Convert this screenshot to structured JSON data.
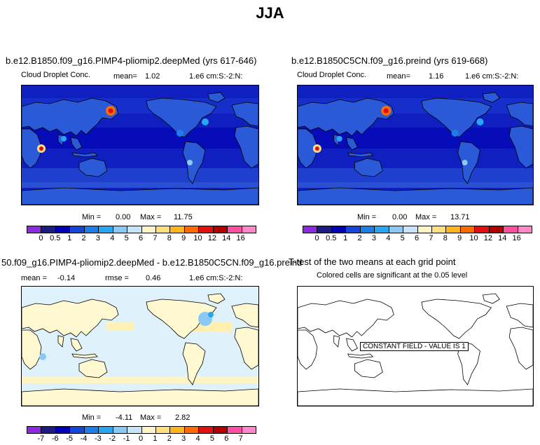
{
  "page_title": "JJA",
  "panels": {
    "p1": {
      "title": "b.e12.B1850.f09_g16.PIMP4-pliomip2.deepMed (yrs 617-646)",
      "var": "Cloud Droplet Conc.",
      "mean_label": "mean=",
      "mean_value": "1.02",
      "units": "1.e6 cm:S:-2:N:",
      "min_label": "Min =",
      "min_value": "0.00",
      "max_label": "Max =",
      "max_value": "11.75"
    },
    "p2": {
      "title": "b.e12.B1850C5CN.f09_g16.preind (yrs 619-668)",
      "var": "Cloud Droplet Conc.",
      "mean_label": "mean=",
      "mean_value": "1.16",
      "units": "1.e6 cm:S:-2:N:",
      "min_label": "Min =",
      "min_value": "0.00",
      "max_label": "Max =",
      "max_value": "13.71"
    },
    "p3": {
      "title": "50.f09_g16.PIMP4-pliomip2.deepMed - b.e12.B1850C5CN.f09_g16.preind",
      "mean_label": "mean =",
      "mean_value": "-0.14",
      "rmse_label": "rmse =",
      "rmse_value": "0.46",
      "units": "1.e6 cm:S:-2:N:",
      "min_label": "Min =",
      "min_value": "-4.11",
      "max_label": "Max =",
      "max_value": "2.82"
    },
    "p4": {
      "title": "T-test of the two means at each grid point",
      "subtitle": "Colored cells are significant at the 0.05 level",
      "constant_label": "CONSTANT FIELD - VALUE IS 1"
    }
  },
  "colorbar_abs": {
    "ticks": [
      "0",
      "0.5",
      "1",
      "2",
      "3",
      "4",
      "5",
      "6",
      "7",
      "8",
      "9",
      "10",
      "12",
      "14",
      "16"
    ],
    "colors": [
      "#8a2be2",
      "#1c1c80",
      "#0000b4",
      "#1646d8",
      "#1e7ee8",
      "#28a6f2",
      "#8cc8f4",
      "#c8e4f8",
      "#fff4c8",
      "#ffe080",
      "#ffb420",
      "#ff6a00",
      "#e01010",
      "#b00000",
      "#ff50a0",
      "#ff88c8"
    ]
  },
  "colorbar_diff": {
    "ticks": [
      "-7",
      "-6",
      "-5",
      "-4",
      "-3",
      "-2",
      "-1",
      "0",
      "1",
      "2",
      "3",
      "4",
      "5",
      "6",
      "7"
    ],
    "colors": [
      "#8a2be2",
      "#1c1c80",
      "#0000b4",
      "#1646d8",
      "#1e7ee8",
      "#28a6f2",
      "#8cc8f4",
      "#c8e4f8",
      "#fff4c8",
      "#ffe080",
      "#ffb420",
      "#ff6a00",
      "#e01010",
      "#b00000",
      "#ff50a0",
      "#ff88c8"
    ]
  },
  "colors": {
    "ocean_abs": "#1020c0",
    "land_abs": "#2a5ad8",
    "ocean_diff": "#dff2fb",
    "land_diff": "#fff8d0",
    "coast": "#000000"
  }
}
